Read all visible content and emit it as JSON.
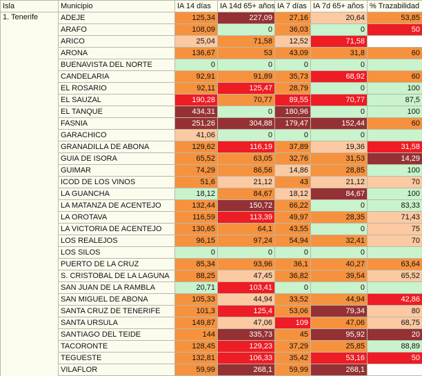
{
  "colors": {
    "O": "#f6923e",
    "P": "#fbc9a2",
    "G": "#c8f3cc",
    "R": "#ee1c24",
    "D": "#953134",
    "W": "#ffffff"
  },
  "headers": [
    "Isla",
    "Municipio",
    "IA 14 días",
    "IA 14d 65+ años",
    "IA 7 días",
    "IA 7d 65+ años",
    "% Trazabilidad"
  ],
  "isla": "1. Tenerife",
  "rows": [
    {
      "municipio": "ADEJE",
      "values": [
        "125,34",
        "227,09",
        "27,16",
        "20,64",
        "53,85"
      ],
      "levels": [
        "O",
        "D",
        "O",
        "P",
        "O"
      ]
    },
    {
      "municipio": "ARAFO",
      "values": [
        "108,09",
        "0",
        "36,03",
        "0",
        "50"
      ],
      "levels": [
        "O",
        "G",
        "O",
        "G",
        "R"
      ]
    },
    {
      "municipio": "ARICO",
      "values": [
        "25,04",
        "71,58",
        "12,52",
        "71,58",
        ""
      ],
      "levels": [
        "P",
        "O",
        "P",
        "R",
        "W"
      ]
    },
    {
      "municipio": "ARONA",
      "values": [
        "136,67",
        "53",
        "43,09",
        "31,8",
        "60"
      ],
      "levels": [
        "O",
        "O",
        "O",
        "O",
        "O"
      ]
    },
    {
      "municipio": "BUENAVISTA DEL NORTE",
      "values": [
        "0",
        "0",
        "0",
        "0",
        ""
      ],
      "levels": [
        "G",
        "G",
        "G",
        "G",
        "G"
      ]
    },
    {
      "municipio": "CANDELARIA",
      "values": [
        "92,91",
        "91,89",
        "35,73",
        "68,92",
        "60"
      ],
      "levels": [
        "O",
        "O",
        "O",
        "R",
        "O"
      ]
    },
    {
      "municipio": "EL ROSARIO",
      "values": [
        "92,11",
        "125,47",
        "28,79",
        "0",
        "100"
      ],
      "levels": [
        "O",
        "R",
        "O",
        "G",
        "G"
      ]
    },
    {
      "municipio": "EL SAUZAL",
      "values": [
        "190,28",
        "70,77",
        "89,55",
        "70,77",
        "87,5"
      ],
      "levels": [
        "R",
        "O",
        "R",
        "R",
        "G"
      ]
    },
    {
      "municipio": "EL TANQUE",
      "values": [
        "434,31",
        "0",
        "180,96",
        "0",
        "100"
      ],
      "levels": [
        "D",
        "G",
        "D",
        "G",
        "G"
      ]
    },
    {
      "municipio": "FASNIA",
      "values": [
        "251,26",
        "304,88",
        "179,47",
        "152,44",
        "60"
      ],
      "levels": [
        "D",
        "D",
        "D",
        "D",
        "O"
      ]
    },
    {
      "municipio": "GARACHICO",
      "values": [
        "41,06",
        "0",
        "0",
        "0",
        ""
      ],
      "levels": [
        "P",
        "G",
        "G",
        "G",
        "G"
      ]
    },
    {
      "municipio": "GRANADILLA DE ABONA",
      "values": [
        "129,62",
        "116,19",
        "37,89",
        "19,36",
        "31,58"
      ],
      "levels": [
        "O",
        "R",
        "O",
        "P",
        "R"
      ]
    },
    {
      "municipio": "GUIA DE ISORA",
      "values": [
        "65,52",
        "63,05",
        "32,76",
        "31,53",
        "14,29"
      ],
      "levels": [
        "O",
        "O",
        "O",
        "O",
        "D"
      ]
    },
    {
      "municipio": "GUIMAR",
      "values": [
        "74,29",
        "86,56",
        "14,86",
        "28,85",
        "100"
      ],
      "levels": [
        "O",
        "O",
        "P",
        "O",
        "G"
      ]
    },
    {
      "municipio": "ICOD DE LOS VINOS",
      "values": [
        "51,6",
        "21,12",
        "43",
        "21,12",
        "70"
      ],
      "levels": [
        "O",
        "P",
        "O",
        "P",
        "P"
      ]
    },
    {
      "municipio": "LA GUANCHA",
      "values": [
        "18,12",
        "84,67",
        "18,12",
        "84,67",
        "100"
      ],
      "levels": [
        "G",
        "O",
        "P",
        "D",
        "G"
      ]
    },
    {
      "municipio": "LA MATANZA DE ACENTEJO",
      "values": [
        "132,44",
        "150,72",
        "66,22",
        "0",
        "83,33"
      ],
      "levels": [
        "O",
        "D",
        "O",
        "G",
        "G"
      ]
    },
    {
      "municipio": "LA OROTAVA",
      "values": [
        "116,59",
        "113,39",
        "49,97",
        "28,35",
        "71,43"
      ],
      "levels": [
        "O",
        "R",
        "O",
        "O",
        "P"
      ]
    },
    {
      "municipio": "LA VICTORIA DE ACENTEJO",
      "values": [
        "130,65",
        "64,1",
        "43,55",
        "0",
        "75"
      ],
      "levels": [
        "O",
        "O",
        "O",
        "G",
        "P"
      ]
    },
    {
      "municipio": "LOS REALEJOS",
      "values": [
        "96,15",
        "97,24",
        "54,94",
        "32,41",
        "70"
      ],
      "levels": [
        "O",
        "O",
        "O",
        "O",
        "P"
      ]
    },
    {
      "municipio": "LOS SILOS",
      "values": [
        "0",
        "0",
        "0",
        "0",
        ""
      ],
      "levels": [
        "G",
        "G",
        "G",
        "G",
        "G"
      ]
    },
    {
      "municipio": "PUERTO DE LA CRUZ",
      "values": [
        "85,34",
        "93,96",
        "36,1",
        "40,27",
        "63,64"
      ],
      "levels": [
        "O",
        "O",
        "O",
        "O",
        "O"
      ]
    },
    {
      "municipio": "S. CRISTOBAL DE LA LAGUNA",
      "values": [
        "88,25",
        "47,45",
        "36,82",
        "39,54",
        "65,52"
      ],
      "levels": [
        "O",
        "P",
        "O",
        "O",
        "P"
      ]
    },
    {
      "municipio": "SAN JUAN DE LA RAMBLA",
      "values": [
        "20,71",
        "103,41",
        "0",
        "0",
        ""
      ],
      "levels": [
        "G",
        "R",
        "G",
        "G",
        "G"
      ]
    },
    {
      "municipio": "SAN MIGUEL DE ABONA",
      "values": [
        "105,33",
        "44,94",
        "33,52",
        "44,94",
        "42,86"
      ],
      "levels": [
        "O",
        "P",
        "O",
        "O",
        "R"
      ]
    },
    {
      "municipio": "SANTA CRUZ DE TENERIFE",
      "values": [
        "101,3",
        "125,4",
        "53,06",
        "79,34",
        "80"
      ],
      "levels": [
        "O",
        "R",
        "O",
        "D",
        "P"
      ]
    },
    {
      "municipio": "SANTA URSULA",
      "values": [
        "149,87",
        "47,06",
        "109",
        "47,06",
        "68,75"
      ],
      "levels": [
        "O",
        "P",
        "R",
        "O",
        "P"
      ]
    },
    {
      "municipio": "SANTIAGO DEL TEIDE",
      "values": [
        "144",
        "335,73",
        "45",
        "95,92",
        "20"
      ],
      "levels": [
        "O",
        "D",
        "O",
        "D",
        "D"
      ]
    },
    {
      "municipio": "TACORONTE",
      "values": [
        "128,45",
        "129,23",
        "37,29",
        "25,85",
        "88,89"
      ],
      "levels": [
        "O",
        "R",
        "O",
        "O",
        "G"
      ]
    },
    {
      "municipio": "TEGUESTE",
      "values": [
        "132,81",
        "106,33",
        "35,42",
        "53,16",
        "50"
      ],
      "levels": [
        "O",
        "R",
        "O",
        "R",
        "R"
      ]
    },
    {
      "municipio": "VILAFLOR",
      "values": [
        "59,99",
        "268,1",
        "59,99",
        "268,1",
        ""
      ],
      "levels": [
        "O",
        "D",
        "O",
        "D",
        "W"
      ]
    }
  ]
}
